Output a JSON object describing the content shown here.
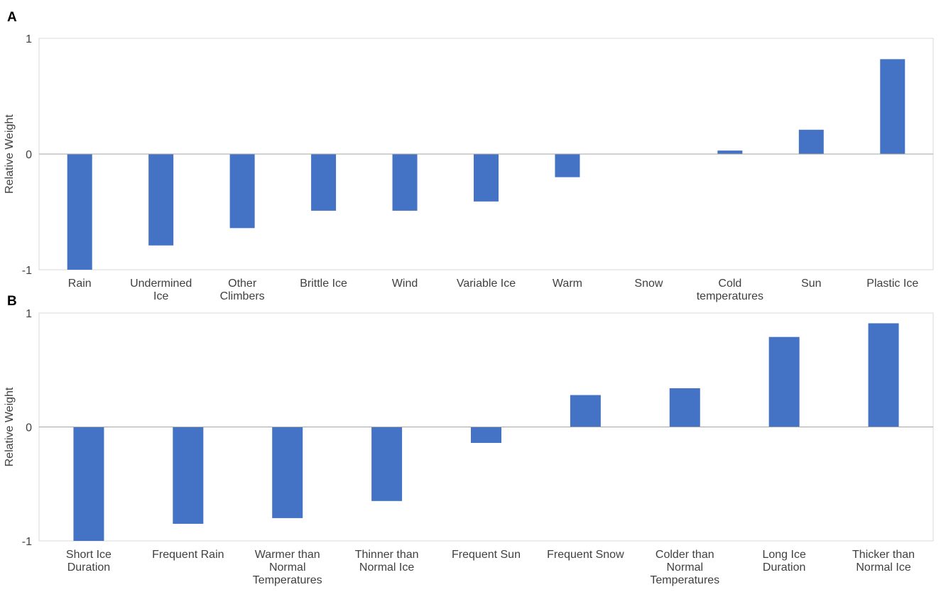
{
  "chart_data": [
    {
      "panel": "A",
      "type": "bar",
      "ylabel": "Relative Weight",
      "ylim": [
        -1,
        1
      ],
      "yticks": [
        "1",
        "0",
        "-1"
      ],
      "categories": [
        [
          "Rain"
        ],
        [
          "Undermined",
          "Ice"
        ],
        [
          "Other",
          "Climbers"
        ],
        [
          "Brittle Ice"
        ],
        [
          "Wind"
        ],
        [
          "Variable Ice"
        ],
        [
          "Warm"
        ],
        [
          "Snow"
        ],
        [
          "Cold",
          "temperatures"
        ],
        [
          "Sun"
        ],
        [
          "Plastic Ice"
        ]
      ],
      "values": [
        -1.0,
        -0.79,
        -0.64,
        -0.49,
        -0.49,
        -0.41,
        -0.2,
        0.0,
        0.03,
        0.21,
        0.82
      ],
      "bar_color": "#4472c4"
    },
    {
      "panel": "B",
      "type": "bar",
      "ylabel": "Relative Weight",
      "ylim": [
        -1,
        1
      ],
      "yticks": [
        "1",
        "0",
        "-1"
      ],
      "categories": [
        [
          "Short Ice",
          "Duration"
        ],
        [
          "Frequent Rain"
        ],
        [
          "Warmer than",
          "Normal",
          "Temperatures"
        ],
        [
          "Thinner than",
          "Normal Ice"
        ],
        [
          "Frequent Sun"
        ],
        [
          "Frequent Snow"
        ],
        [
          "Colder than",
          "Normal",
          "Temperatures"
        ],
        [
          "Long Ice",
          "Duration"
        ],
        [
          "Thicker than",
          "Normal Ice"
        ]
      ],
      "values": [
        -1.0,
        -0.85,
        -0.8,
        -0.65,
        -0.14,
        0.28,
        0.34,
        0.79,
        0.91
      ],
      "bar_color": "#4472c4"
    }
  ]
}
